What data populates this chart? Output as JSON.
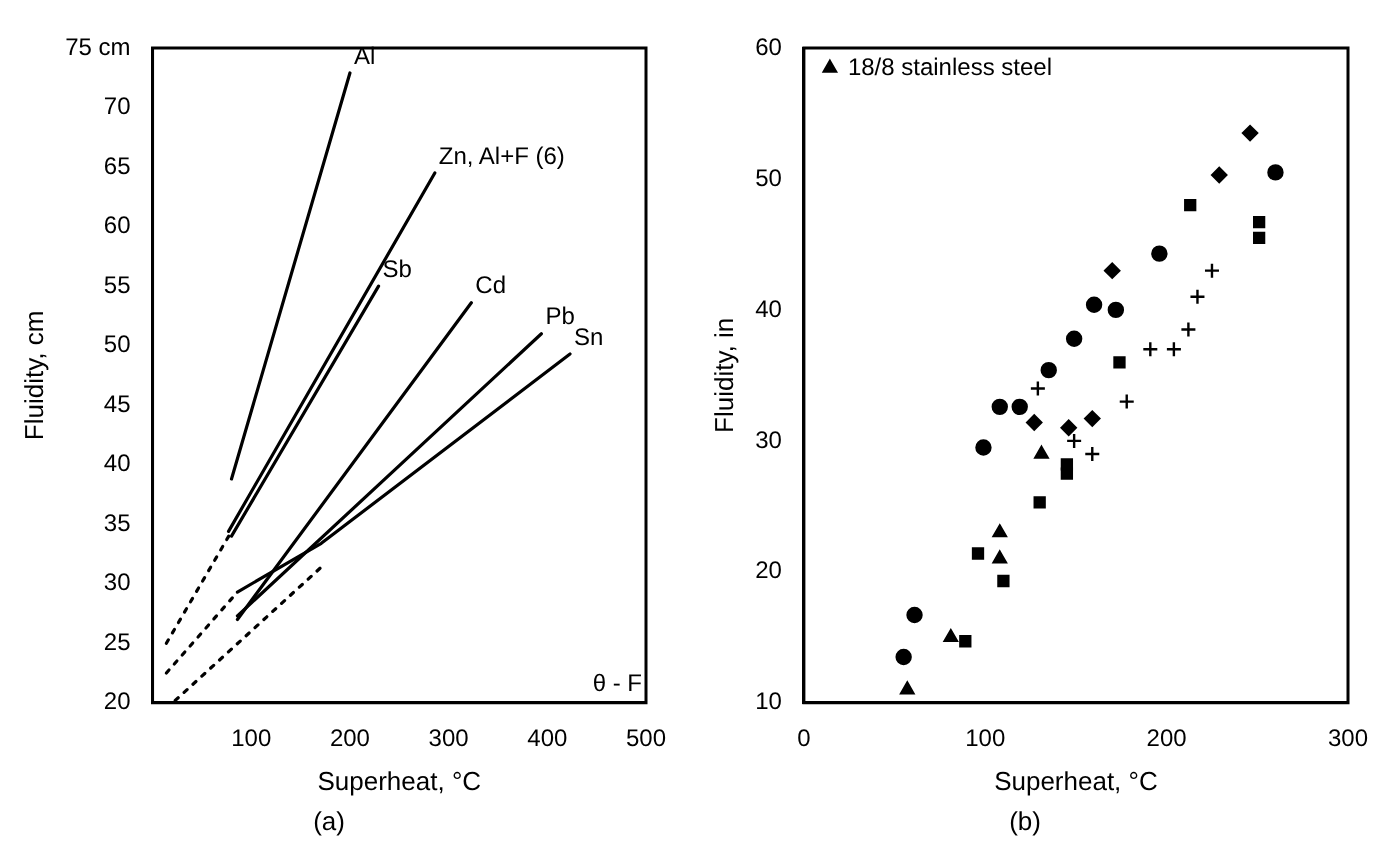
{
  "chart_data": [
    {
      "type": "line",
      "subtitle": "(a)",
      "xlabel": "Superheat, °C",
      "ylabel": "Fluidity, cm",
      "xlim": [
        0,
        500
      ],
      "ylim": [
        20,
        75
      ],
      "xticks": [
        100,
        200,
        300,
        400,
        500
      ],
      "yticks": [
        20,
        25,
        30,
        35,
        40,
        45,
        50,
        55,
        60,
        65,
        70,
        {
          "value": 75,
          "label": "75 cm"
        }
      ],
      "grid": false,
      "marker": "none",
      "annotations": [
        "θ - F"
      ],
      "series": [
        {
          "name": "Al",
          "color": "#000000",
          "x": [
            80,
            200
          ],
          "values": [
            38.8,
            72.9
          ]
        },
        {
          "name": "Zn, Al+F (6)",
          "color": "#000000",
          "x": [
            77,
            286
          ],
          "values": [
            34.4,
            64.5
          ]
        },
        {
          "name": "Sb",
          "color": "#000000",
          "x": [
            80,
            229
          ],
          "values": [
            34,
            55
          ]
        },
        {
          "name": "Cd",
          "color": "#000000",
          "x": [
            86,
            323
          ],
          "values": [
            27,
            53.6
          ]
        },
        {
          "name": "Pb",
          "color": "#000000",
          "x": [
            86,
            394
          ],
          "values": [
            27.3,
            51
          ]
        },
        {
          "name": "Sn",
          "color": "#000000",
          "x": [
            86,
            171,
            423
          ],
          "values": [
            29.3,
            33.4,
            49.3
          ]
        },
        {
          "color": "#000000",
          "line_style": "dotted",
          "x": [
            14,
            80
          ],
          "values": [
            25,
            34.4
          ]
        },
        {
          "color": "#000000",
          "line_style": "dotted",
          "x": [
            14,
            86
          ],
          "values": [
            22.5,
            29.3
          ]
        },
        {
          "color": "#000000",
          "line_style": "dotted",
          "x": [
            23,
            171
          ],
          "values": [
            20.2,
            31.4
          ]
        }
      ]
    },
    {
      "type": "scatter",
      "subtitle": "(b)",
      "xlabel": "Superheat, °C",
      "ylabel": "Fluidity, in",
      "xlim": [
        0,
        300
      ],
      "ylim": [
        10,
        60
      ],
      "xticks": [
        0,
        100,
        200,
        300
      ],
      "yticks": [
        10,
        20,
        30,
        40,
        50,
        60
      ],
      "grid": false,
      "legend": "top left",
      "series": [
        {
          "name": "18/8 stainless steel",
          "color": "#000000",
          "marker": "triangle",
          "x": [
            57,
            81,
            108,
            108,
            131
          ],
          "values": [
            11,
            15,
            21,
            23,
            29
          ]
        },
        {
          "color": "#000000",
          "marker": "cross",
          "x": [
            129,
            149,
            159,
            178,
            191,
            204,
            212,
            217,
            225
          ],
          "values": [
            34,
            30,
            29,
            33,
            37,
            37,
            38.5,
            41,
            43
          ]
        },
        {
          "color": "#000000",
          "marker": "circle",
          "x": [
            55,
            61,
            99,
            108,
            119,
            135,
            149,
            160,
            172,
            196,
            260
          ],
          "values": [
            13.5,
            16.7,
            29.5,
            32.6,
            32.6,
            35.4,
            37.8,
            40.4,
            40,
            44.3,
            50.5
          ]
        },
        {
          "color": "#000000",
          "marker": "diamond",
          "x": [
            127,
            146,
            159,
            170,
            229,
            246
          ],
          "values": [
            31.4,
            31,
            31.7,
            43,
            50.3,
            53.5
          ]
        },
        {
          "color": "#000000",
          "marker": "square",
          "x": [
            89,
            96,
            110,
            130,
            145,
            145,
            174,
            213,
            251,
            251
          ],
          "values": [
            14.7,
            21.4,
            19.3,
            25.3,
            28.2,
            27.5,
            36,
            48,
            46.7,
            45.5
          ]
        }
      ]
    }
  ]
}
